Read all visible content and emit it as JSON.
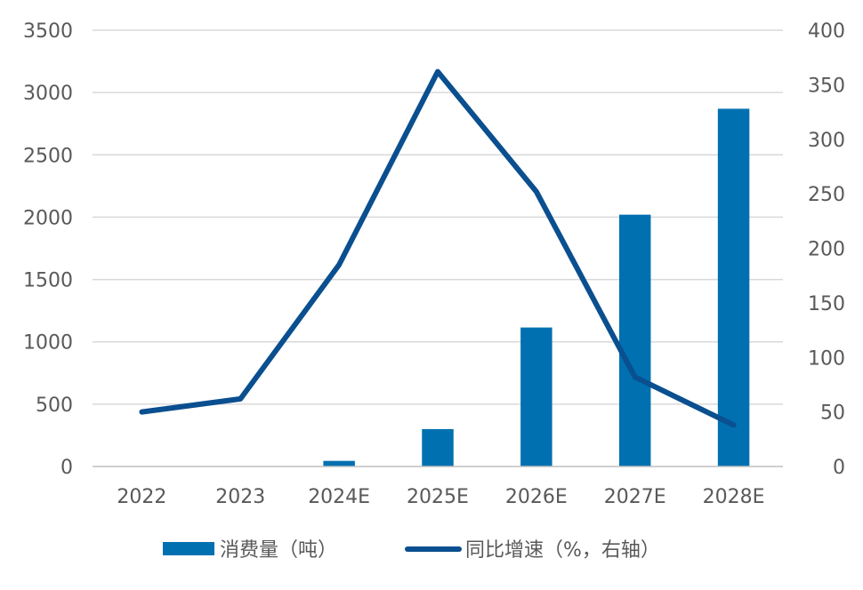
{
  "chart_data": {
    "type": "bar+line",
    "categories": [
      "2022",
      "2023",
      "2024E",
      "2025E",
      "2026E",
      "2027E",
      "2028E"
    ],
    "series": [
      {
        "name": "消费量（吨）",
        "type": "bar",
        "axis": "left",
        "color": "#0070b0",
        "values": [
          0,
          0,
          45,
          300,
          1115,
          2020,
          2870
        ]
      },
      {
        "name": "同比增速（%，右轴）",
        "type": "line",
        "axis": "right",
        "color": "#0a4f8f",
        "values": [
          50,
          62,
          185,
          362,
          252,
          82,
          38
        ]
      }
    ],
    "left_axis": {
      "min": 0,
      "max": 3500,
      "ticks": [
        "0",
        "500",
        "1000",
        "1500",
        "2000",
        "2500",
        "3000",
        "3500"
      ]
    },
    "right_axis": {
      "min": 0,
      "max": 400,
      "ticks": [
        "0",
        "50",
        "100",
        "150",
        "200",
        "250",
        "300",
        "350",
        "400"
      ]
    },
    "grid": true,
    "legend_position": "bottom"
  },
  "colors": {
    "bar": "#0070b0",
    "line": "#0a4f8f",
    "grid": "#d9d9d9",
    "axis": "#bfbfbf",
    "text": "#595959"
  }
}
